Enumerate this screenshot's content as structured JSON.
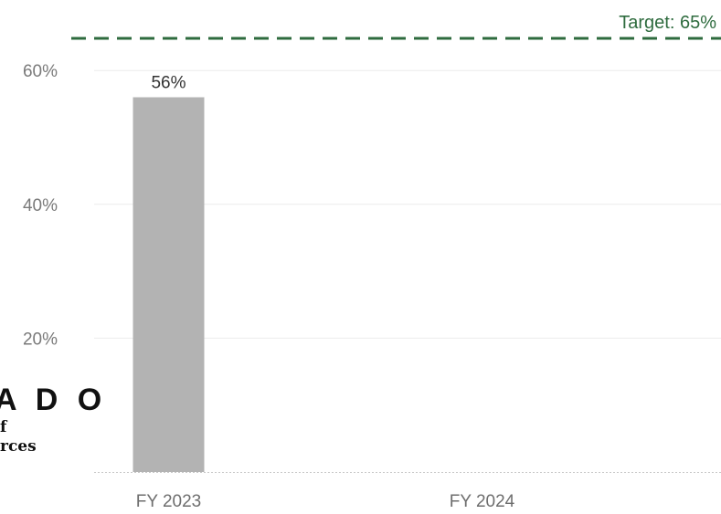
{
  "chart_data": {
    "type": "bar",
    "categories": [
      "FY 2023",
      "FY 2024"
    ],
    "values": [
      56,
      null
    ],
    "data_labels": [
      "56%",
      ""
    ],
    "ylim": [
      0,
      65
    ],
    "yticks": [
      20,
      40,
      60
    ],
    "ytick_labels": [
      "20%",
      "40%",
      "60%"
    ],
    "target": {
      "value": 65,
      "label": "Target: 65%",
      "color": "#2e6b3e"
    },
    "bar_color": "#b3b3b3",
    "grid": true,
    "title": "",
    "xlabel": "",
    "ylabel": ""
  },
  "logo": {
    "word": "A D O",
    "line1": "f",
    "line2": "rces"
  }
}
